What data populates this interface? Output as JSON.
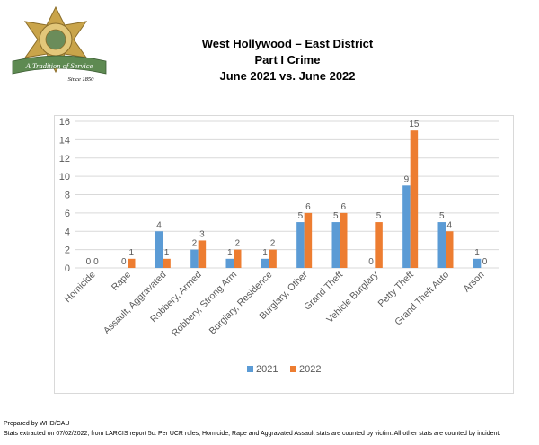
{
  "header": {
    "title_line1": "West Hollywood – East District",
    "title_line2": "Part I Crime",
    "title_line3": "June 2021 vs. June 2022"
  },
  "logo": {
    "badge_text_top": "SHERIFF",
    "badge_text_bottom": "LOS ANGELES COUNTY",
    "ribbon_text": "A Tradition of Service",
    "since_text": "Since 1850"
  },
  "footer": {
    "line1": "Prepared by WHD/CAU",
    "line2": "Stats extracted on 07/02/2022, from LARCIS report 5c. Per UCR rules, Homicide, Rape and Aggravated Assault stats are counted by victim. All other stats are counted by incident."
  },
  "colors": {
    "series_2021": "#5b9bd5",
    "series_2022": "#ed7d31",
    "gridline": "#d9d9d9",
    "axis_text": "#595959",
    "logo_gold": "#c9a44a",
    "ribbon_green": "#5e8a52"
  },
  "chart_data": {
    "type": "bar",
    "categories": [
      "Homicide",
      "Rape",
      "Assault, Aggravated",
      "Robbery, Armed",
      "Robbery, Strong Arm",
      "Burglary, Residence",
      "Burglary, Other",
      "Grand Theft",
      "Vehicle Burglary",
      "Petty Theft",
      "Grand Theft Auto",
      "Arson"
    ],
    "series": [
      {
        "name": "2021",
        "values": [
          0,
          0,
          4,
          2,
          1,
          1,
          5,
          5,
          0,
          9,
          5,
          1
        ]
      },
      {
        "name": "2022",
        "values": [
          0,
          1,
          1,
          3,
          2,
          2,
          6,
          6,
          5,
          15,
          4,
          0
        ]
      }
    ],
    "ylim": [
      0,
      16
    ],
    "yticks": [
      0,
      2,
      4,
      6,
      8,
      10,
      12,
      14,
      16
    ],
    "grid": true,
    "legend": "bottom",
    "title": "",
    "xlabel": "",
    "ylabel": ""
  }
}
